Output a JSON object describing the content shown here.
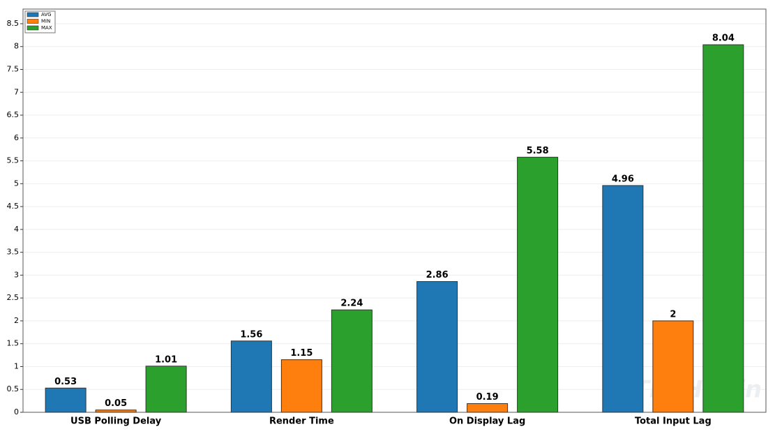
{
  "chart_data": {
    "type": "bar",
    "categories": [
      "USB Polling Delay",
      "Render Time",
      "On Display Lag",
      "Total Input Lag"
    ],
    "series": [
      {
        "name": "AVG",
        "color": "#1f77b4",
        "values": [
          0.53,
          1.56,
          2.86,
          4.96
        ]
      },
      {
        "name": "MIN",
        "color": "#ff7f0e",
        "values": [
          0.05,
          1.15,
          0.19,
          2
        ]
      },
      {
        "name": "MAX",
        "color": "#2ca02c",
        "values": [
          1.01,
          2.24,
          5.58,
          8.04
        ]
      }
    ],
    "ylim": [
      0,
      8.82
    ],
    "yticks": [
      0,
      0.5,
      1,
      1.5,
      2,
      2.5,
      3,
      3.5,
      4,
      4.5,
      5,
      5.5,
      6,
      6.5,
      7,
      7.5,
      8,
      8.5
    ],
    "grid": true,
    "legend": "upper-left",
    "watermark": "TECHFI.in"
  }
}
